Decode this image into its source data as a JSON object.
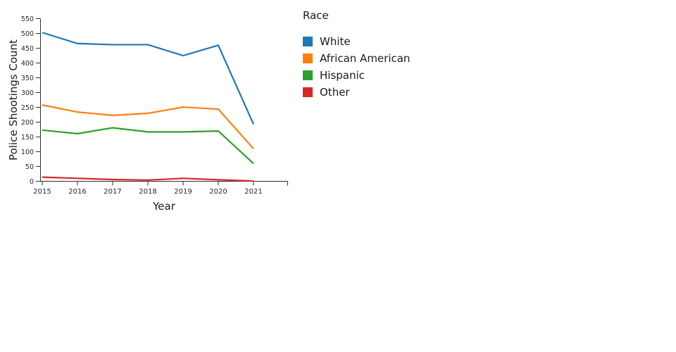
{
  "chart_data": {
    "type": "line",
    "xlabel": "Year",
    "ylabel": "Police Shootings Count",
    "legend_title": "Race",
    "legend_position": "right",
    "grid": false,
    "x": [
      2015,
      2016,
      2017,
      2018,
      2019,
      2020,
      2021
    ],
    "x_ticks": [
      "2015",
      "2016",
      "2017",
      "2018",
      "2019",
      "2020",
      "2021"
    ],
    "y_ticks": [
      0,
      50,
      100,
      150,
      200,
      250,
      300,
      350,
      400,
      450,
      500,
      550
    ],
    "ylim": [
      0,
      550
    ],
    "series": [
      {
        "name": "White",
        "color": "#1f77b4",
        "values": [
          503,
          466,
          462,
          462,
          425,
          460,
          193
        ]
      },
      {
        "name": "African American",
        "color": "#ff7f0e",
        "values": [
          258,
          234,
          223,
          230,
          251,
          244,
          110
        ]
      },
      {
        "name": "Hispanic",
        "color": "#2ca02c",
        "values": [
          173,
          161,
          181,
          167,
          167,
          170,
          60
        ]
      },
      {
        "name": "Other",
        "color": "#d62728",
        "values": [
          14,
          10,
          6,
          4,
          10,
          5,
          1
        ]
      }
    ]
  }
}
